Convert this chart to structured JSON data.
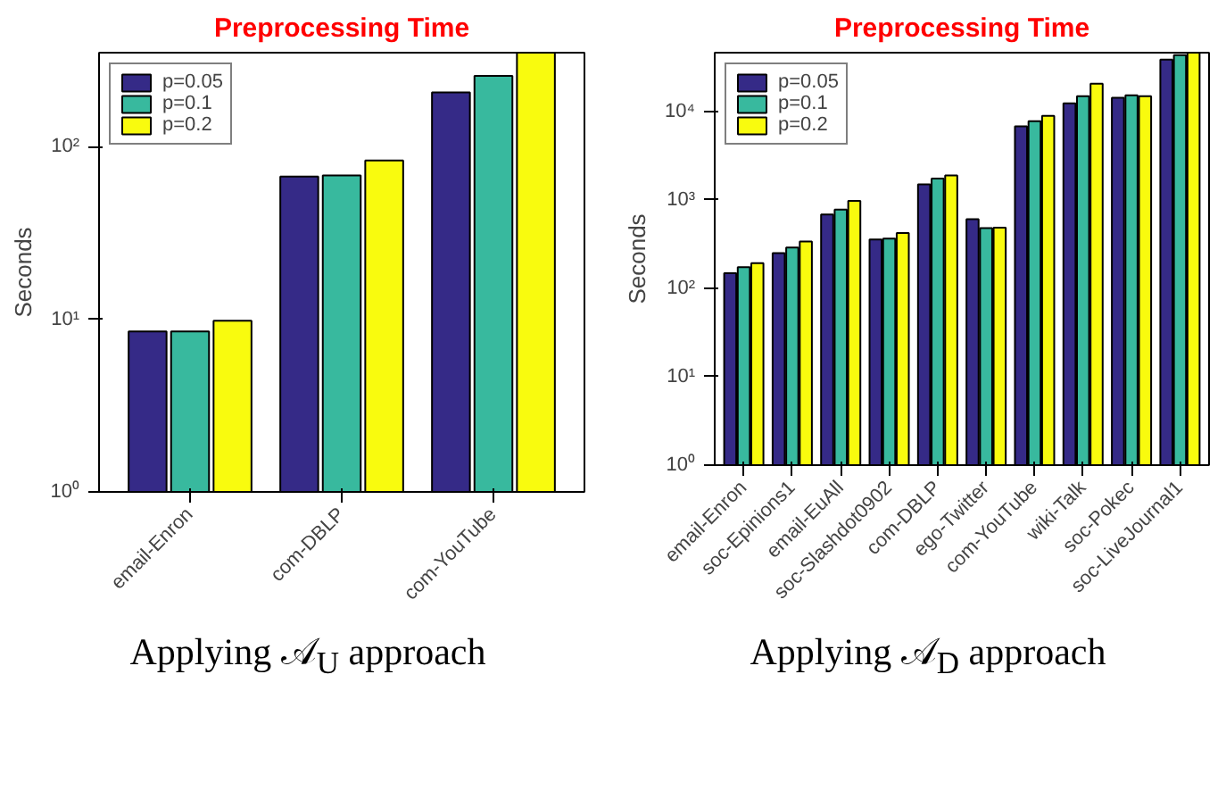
{
  "chart_data": [
    {
      "type": "bar",
      "title": "Preprocessing Time",
      "ylabel": "Seconds",
      "categories": [
        "email-Enron",
        "com-DBLP",
        "com-YouTube"
      ],
      "series": [
        {
          "name": "p=0.05",
          "color": "#352a87",
          "values": [
            8.5,
            67,
            206
          ]
        },
        {
          "name": "p=0.1",
          "color": "#38b99e",
          "values": [
            8.5,
            68,
            257
          ]
        },
        {
          "name": "p=0.2",
          "color": "#f9fb0e",
          "values": [
            9.8,
            83,
            350
          ]
        }
      ],
      "log": "y",
      "ylim": [
        1,
        350
      ],
      "yticks": [
        {
          "value": 1,
          "label": "10⁰"
        },
        {
          "value": 10,
          "label": "10¹"
        },
        {
          "value": 100,
          "label": "10²"
        }
      ],
      "grid": false,
      "legend": "top left",
      "annotations": [
        "Applying 𝒜$_{U}$ approach"
      ]
    },
    {
      "type": "bar",
      "title": "Preprocessing Time",
      "ylabel": "Seconds",
      "categories": [
        "email-Enron",
        "soc-Epinions1",
        "email-EuAll",
        "soc-Slashdot0902",
        "com-DBLP",
        "ego-Twitter",
        "com-YouTube",
        "wiki-Talk",
        "soc-Pokec",
        "soc-LiveJournal1"
      ],
      "series": [
        {
          "name": "p=0.05",
          "color": "#352a87",
          "values": [
            148,
            250,
            680,
            355,
            1490,
            605,
            6760,
            12300,
            14200,
            38400
          ]
        },
        {
          "name": "p=0.1",
          "color": "#38b99e",
          "values": [
            173,
            288,
            775,
            364,
            1740,
            479,
            7710,
            14800,
            15200,
            43100
          ]
        },
        {
          "name": "p=0.2",
          "color": "#f9fb0e",
          "values": [
            192,
            337,
            970,
            420,
            1880,
            485,
            8890,
            20500,
            14800,
            46000
          ]
        }
      ],
      "log": "y",
      "ylim": [
        1,
        46000
      ],
      "yticks": [
        {
          "value": 1,
          "label": "10⁰"
        },
        {
          "value": 10,
          "label": "10¹"
        },
        {
          "value": 100,
          "label": "10²"
        },
        {
          "value": 1000,
          "label": "10³"
        },
        {
          "value": 10000,
          "label": "10⁴"
        }
      ],
      "grid": false,
      "legend": "top left",
      "annotations": [
        "Applying 𝒜$_{D}$ approach"
      ]
    }
  ]
}
